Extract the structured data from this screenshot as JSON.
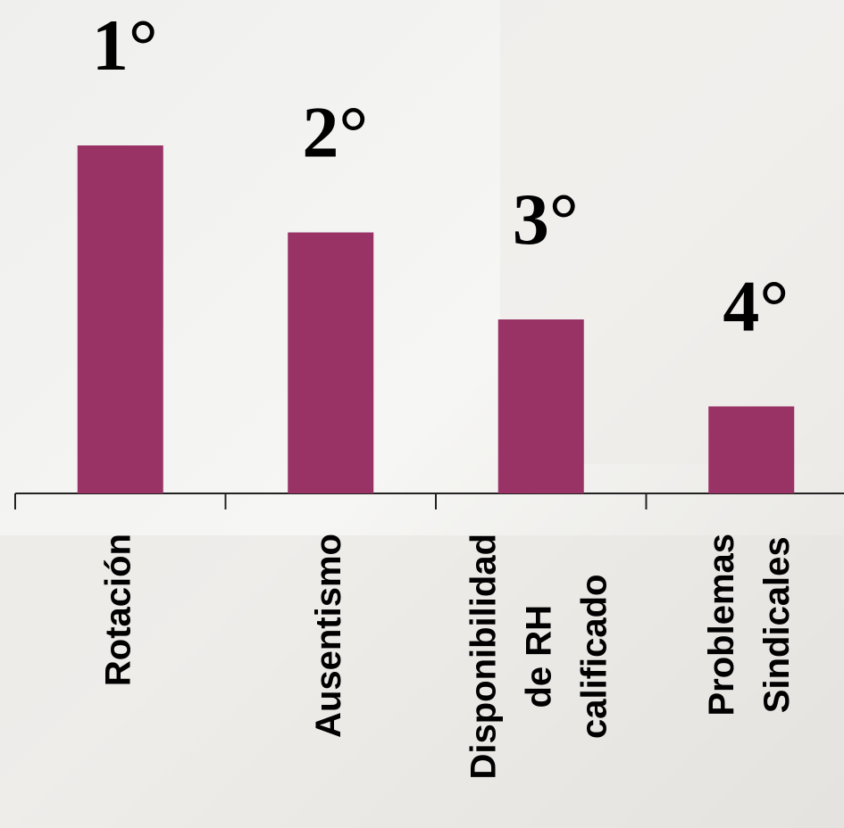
{
  "chart_data": {
    "type": "bar",
    "categories": [
      [
        "Rotación"
      ],
      [
        "Ausentismo"
      ],
      [
        "Disponibilidad",
        "de RH",
        "calificado"
      ],
      [
        "Problemas",
        "Sindicales"
      ]
    ],
    "values": [
      4,
      3,
      2,
      1
    ],
    "annotations": [
      "1°",
      "2°",
      "3°",
      "4°"
    ],
    "color": "#993366",
    "ylim": [
      0,
      4
    ]
  }
}
